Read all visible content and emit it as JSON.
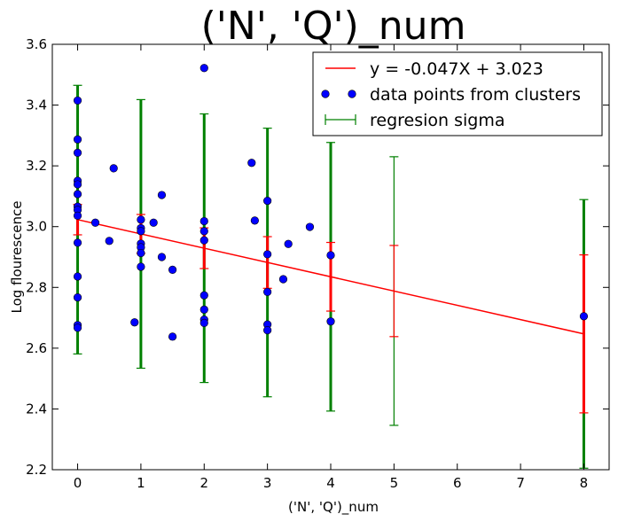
{
  "chart_data": {
    "type": "scatter",
    "title": "('N', 'Q')_num",
    "xlabel": "('N', 'Q')_num",
    "ylabel": "Log flourescence",
    "xlim": [
      -0.4,
      8.4
    ],
    "ylim": [
      2.2,
      3.6
    ],
    "x_ticks": [
      "0",
      "1",
      "2",
      "3",
      "4",
      "5",
      "6",
      "7",
      "8"
    ],
    "x_tick_values": [
      0,
      1,
      2,
      3,
      4,
      5,
      6,
      7,
      8
    ],
    "y_ticks": [
      "2.2",
      "2.4",
      "2.6",
      "2.8",
      "3.0",
      "3.2",
      "3.4",
      "3.6"
    ],
    "y_tick_values": [
      2.2,
      2.4,
      2.6,
      2.8,
      3.0,
      3.2,
      3.4,
      3.6
    ],
    "grid": false,
    "legend_position": "top-right",
    "colors": {
      "fit": "#ff0000",
      "points": "#0000ff",
      "sigma": "#008000"
    },
    "series": [
      {
        "name": "y = -0.047X + 3.023",
        "kind": "line",
        "x": [
          0,
          8
        ],
        "y": [
          3.023,
          2.647
        ]
      },
      {
        "name": "data points from clusters",
        "kind": "points",
        "points": [
          [
            0,
            3.415
          ],
          [
            0,
            3.287
          ],
          [
            0,
            3.243
          ],
          [
            0,
            3.151
          ],
          [
            0,
            3.139
          ],
          [
            0,
            3.107
          ],
          [
            0,
            3.066
          ],
          [
            0,
            3.055
          ],
          [
            0,
            3.036
          ],
          [
            0,
            2.947
          ],
          [
            0,
            2.836
          ],
          [
            0,
            2.767
          ],
          [
            0,
            2.676
          ],
          [
            0,
            2.667
          ],
          [
            0.28,
            3.013
          ],
          [
            0.5,
            2.953
          ],
          [
            0.57,
            3.192
          ],
          [
            0.9,
            2.685
          ],
          [
            1,
            3.023
          ],
          [
            1,
            2.995
          ],
          [
            1,
            2.985
          ],
          [
            1,
            2.944
          ],
          [
            1,
            2.932
          ],
          [
            1,
            2.913
          ],
          [
            1,
            2.868
          ],
          [
            1.2,
            3.013
          ],
          [
            1.33,
            3.104
          ],
          [
            1.33,
            2.9
          ],
          [
            1.5,
            2.858
          ],
          [
            1.5,
            2.638
          ],
          [
            2,
            3.522
          ],
          [
            2,
            3.018
          ],
          [
            2,
            2.985
          ],
          [
            2,
            2.955
          ],
          [
            2,
            2.774
          ],
          [
            2,
            2.727
          ],
          [
            2,
            2.694
          ],
          [
            2,
            2.683
          ],
          [
            2.75,
            3.21
          ],
          [
            2.8,
            3.02
          ],
          [
            3,
            3.085
          ],
          [
            3,
            2.909
          ],
          [
            3,
            2.785
          ],
          [
            3,
            2.678
          ],
          [
            3,
            2.659
          ],
          [
            3.25,
            2.827
          ],
          [
            3.33,
            2.943
          ],
          [
            3.67,
            2.999
          ],
          [
            4,
            2.906
          ],
          [
            4,
            2.688
          ],
          [
            8,
            2.705
          ]
        ]
      },
      {
        "name": "regresion sigma",
        "kind": "errorbars",
        "bars": [
          {
            "x": 0,
            "center": 3.023,
            "sigma": 0.442,
            "bold": true
          },
          {
            "x": 1,
            "center": 2.976,
            "sigma": 0.442,
            "bold": true
          },
          {
            "x": 2,
            "center": 2.929,
            "sigma": 0.442,
            "bold": true
          },
          {
            "x": 3,
            "center": 2.882,
            "sigma": 0.442,
            "bold": true
          },
          {
            "x": 4,
            "center": 2.835,
            "sigma": 0.442,
            "bold": true
          },
          {
            "x": 5,
            "center": 2.788,
            "sigma": 0.442,
            "bold": false
          },
          {
            "x": 8,
            "center": 2.647,
            "sigma": 0.442,
            "bold": true
          }
        ]
      },
      {
        "name": "",
        "kind": "errorbars",
        "color": "fit",
        "bars": [
          {
            "x": 0,
            "center": 3.023,
            "sigma": 0.05,
            "bold": true
          },
          {
            "x": 1,
            "center": 2.976,
            "sigma": 0.064,
            "bold": true
          },
          {
            "x": 2,
            "center": 2.929,
            "sigma": 0.067,
            "bold": true
          },
          {
            "x": 3,
            "center": 2.882,
            "sigma": 0.085,
            "bold": true
          },
          {
            "x": 4,
            "center": 2.835,
            "sigma": 0.113,
            "bold": true
          },
          {
            "x": 5,
            "center": 2.788,
            "sigma": 0.15,
            "bold": false
          },
          {
            "x": 8,
            "center": 2.647,
            "sigma": 0.26,
            "bold": true
          }
        ]
      }
    ],
    "legend": [
      {
        "label": "y = -0.047X + 3.023",
        "marker": "line"
      },
      {
        "label": "data points from clusters",
        "marker": "points"
      },
      {
        "label": "regresion sigma",
        "marker": "errorbar"
      }
    ]
  }
}
